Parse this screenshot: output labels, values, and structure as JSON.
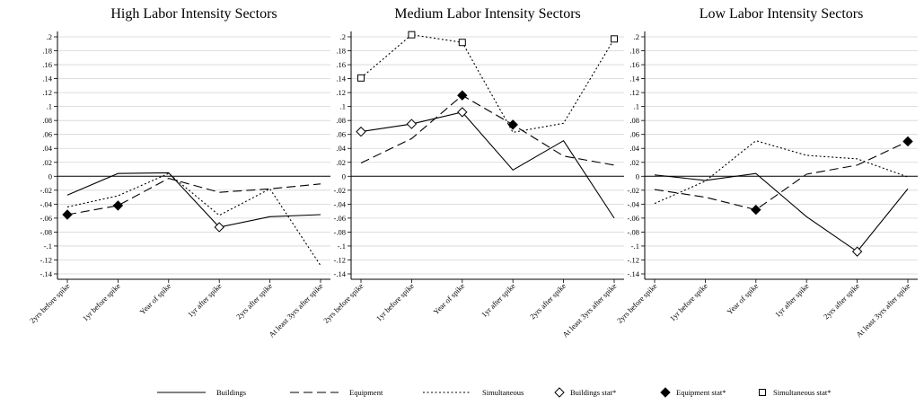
{
  "chart_data": [
    {
      "type": "line",
      "title": "High Labor Intensity Sectors",
      "categories": [
        "2yrs before spike",
        "1yr before spike",
        "Year of spike",
        "1yr after spike",
        "2yrs after spike",
        "At least 3yrs after spike"
      ],
      "yticks": [
        ".2",
        ".18",
        ".16",
        ".14",
        ".12",
        ".1",
        ".08",
        ".06",
        ".04",
        ".02",
        "0",
        "-.02",
        "-.04",
        "-.06",
        "-.08",
        "-.1",
        "-.12",
        "-.14"
      ],
      "ylim": [
        -0.14,
        0.2
      ],
      "grid": true,
      "series": [
        {
          "name": "Buildings",
          "style": "solid",
          "values": [
            -0.027,
            0.004,
            0.005,
            -0.073,
            -0.058,
            -0.055
          ],
          "stat": [
            false,
            false,
            false,
            true,
            false,
            false
          ]
        },
        {
          "name": "Equipment",
          "style": "dashed",
          "values": [
            -0.055,
            -0.042,
            -0.003,
            -0.023,
            -0.018,
            -0.011
          ],
          "stat": [
            true,
            true,
            false,
            false,
            false,
            false
          ]
        },
        {
          "name": "Simultaneous",
          "style": "dotted",
          "values": [
            -0.044,
            -0.028,
            0.004,
            -0.056,
            -0.018,
            -0.128
          ],
          "stat": [
            false,
            false,
            false,
            false,
            false,
            false
          ]
        }
      ]
    },
    {
      "type": "line",
      "title": "Medium Labor Intensity Sectors",
      "categories": [
        "2yrs before spike",
        "1yr before spike",
        "Year of spike",
        "1yr after spike",
        "2yrs after spike",
        "At least 3yrs after spike"
      ],
      "yticks": [
        ".2",
        ".18",
        ".16",
        ".14",
        ".12",
        ".1",
        ".08",
        ".06",
        ".04",
        ".02",
        "0",
        "-.02",
        "-.04",
        "-.06",
        "-.08",
        "-.1",
        "-.12",
        "-.14"
      ],
      "ylim": [
        -0.14,
        0.2
      ],
      "grid": true,
      "series": [
        {
          "name": "Buildings",
          "style": "solid",
          "values": [
            0.064,
            0.075,
            0.092,
            0.009,
            0.051,
            -0.06
          ],
          "stat": [
            true,
            true,
            true,
            false,
            false,
            false
          ]
        },
        {
          "name": "Equipment",
          "style": "dashed",
          "values": [
            0.019,
            0.054,
            0.116,
            0.074,
            0.029,
            0.016
          ],
          "stat": [
            false,
            false,
            true,
            true,
            false,
            false
          ]
        },
        {
          "name": "Simultaneous",
          "style": "dotted",
          "values": [
            0.141,
            0.203,
            0.192,
            0.063,
            0.076,
            0.197
          ],
          "stat": [
            true,
            true,
            true,
            false,
            false,
            true
          ]
        }
      ]
    },
    {
      "type": "line",
      "title": "Low Labor Intensity Sectors",
      "categories": [
        "2yrs before spike",
        "1yr before spike",
        "Year of spike",
        "1yr after spike",
        "2yrs after spike",
        "At least 3yrs after spike"
      ],
      "yticks": [
        ".2",
        ".18",
        ".16",
        ".14",
        ".12",
        ".1",
        ".08",
        ".06",
        ".04",
        ".02",
        "0",
        "-.02",
        "-.04",
        "-.06",
        "-.08",
        "-.1",
        "-.12",
        "-.14"
      ],
      "ylim": [
        -0.14,
        0.2
      ],
      "grid": true,
      "series": [
        {
          "name": "Buildings",
          "style": "solid",
          "values": [
            0.002,
            -0.006,
            0.004,
            -0.058,
            -0.108,
            -0.018
          ],
          "stat": [
            false,
            false,
            false,
            false,
            true,
            false
          ]
        },
        {
          "name": "Equipment",
          "style": "dashed",
          "values": [
            -0.019,
            -0.03,
            -0.048,
            0.003,
            0.016,
            0.05
          ],
          "stat": [
            false,
            false,
            true,
            false,
            false,
            true
          ]
        },
        {
          "name": "Simultaneous",
          "style": "dotted",
          "values": [
            -0.039,
            -0.007,
            0.051,
            0.03,
            0.025,
            -0.001
          ],
          "stat": [
            false,
            false,
            false,
            false,
            false,
            false
          ]
        }
      ]
    }
  ],
  "legend": {
    "position": "bottom",
    "items": [
      {
        "label": "Buildings",
        "symbol": "solid-line"
      },
      {
        "label": "Equipment",
        "symbol": "dashed-line"
      },
      {
        "label": "Simultaneous",
        "symbol": "dotted-line"
      },
      {
        "label": "Buildings stat*",
        "symbol": "hollow-diamond"
      },
      {
        "label": "Equipment stat*",
        "symbol": "filled-diamond"
      },
      {
        "label": "Simultaneous stat*",
        "symbol": "hollow-square"
      }
    ]
  }
}
